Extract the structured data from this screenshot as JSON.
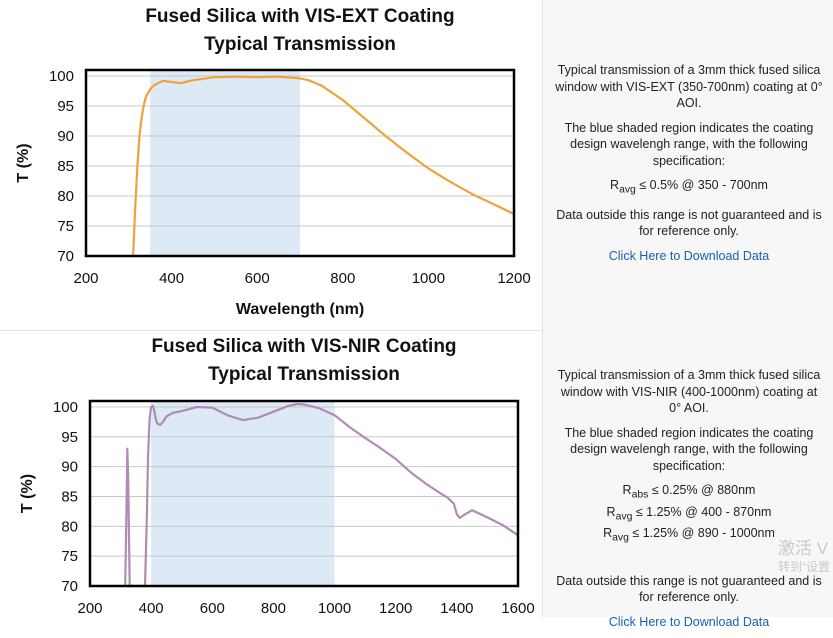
{
  "charts": [
    {
      "chart_data": {
        "type": "line",
        "title": [
          "Fused Silica with VIS-EXT Coating",
          "Typical Transmission"
        ],
        "xlabel": "Wavelength (nm)",
        "ylabel": "T (%)",
        "xlim": [
          200,
          1200
        ],
        "ylim": [
          70,
          101
        ],
        "xticks": [
          200,
          400,
          600,
          800,
          1000,
          1200
        ],
        "yticks": [
          70,
          75,
          80,
          85,
          90,
          95,
          100
        ],
        "shaded_region": [
          350,
          700
        ],
        "series": [
          {
            "color": "#f0a23a",
            "x": [
              310,
              315,
              320,
              325,
              330,
              335,
              340,
              350,
              360,
              380,
              400,
              420,
              450,
              500,
              550,
              600,
              650,
              700,
              720,
              750,
              800,
              850,
              900,
              950,
              1000,
              1050,
              1100,
              1150,
              1200
            ],
            "y": [
              70,
              78,
              85,
              90,
              93,
              95.2,
              96.5,
              97.8,
              98.5,
              99.2,
              99.0,
              98.8,
              99.3,
              99.8,
              99.9,
              99.8,
              99.9,
              99.6,
              99.3,
              98.4,
              96.0,
              93.0,
              90.0,
              87.2,
              84.6,
              82.4,
              80.4,
              78.7,
              77.0
            ]
          }
        ]
      },
      "description": {
        "p1": "Typical transmission of a 3mm thick fused silica window with VIS-EXT (350-700nm) coating at 0° AOI.",
        "p2": "The blue shaded region indicates the coating design wavelengh range, with the following specification:",
        "specs": [
          {
            "sym": "R",
            "sub": "avg",
            "text": " ≤ 0.5% @ 350 - 700nm"
          }
        ],
        "p3": "Data outside this range is not guaranteed and is for reference only.",
        "link": "Click Here to Download Data"
      }
    },
    {
      "chart_data": {
        "type": "line",
        "title": [
          "Fused Silica with VIS-NIR Coating",
          "Typical Transmission"
        ],
        "xlabel": "",
        "ylabel": "T (%)",
        "xlim": [
          200,
          1600
        ],
        "ylim": [
          70,
          101
        ],
        "xticks": [
          200,
          400,
          600,
          800,
          1000,
          1200,
          1400,
          1600
        ],
        "yticks": [
          70,
          75,
          80,
          85,
          90,
          95,
          100
        ],
        "shaded_region": [
          400,
          1000
        ],
        "series": [
          {
            "color": "#b08cb4",
            "x": [
              315,
              320,
              322,
              325,
              330,
              380,
              385,
              390,
              395,
              400,
              405,
              410,
              415,
              420,
              430,
              440,
              450,
              470,
              500,
              550,
              600,
              650,
              700,
              750,
              800,
              850,
              880,
              900,
              950,
              1000,
              1050,
              1100,
              1150,
              1200,
              1250,
              1300,
              1350,
              1370,
              1380,
              1390,
              1400,
              1410,
              1420,
              1450,
              1500,
              1550,
              1600
            ],
            "y": [
              70,
              85,
              93,
              88,
              70,
              70,
              80,
              92,
              98,
              100,
              100.2,
              99.5,
              98,
              97.2,
              97.0,
              97.6,
              98.4,
              99.0,
              99.3,
              100.0,
              99.9,
              98.6,
              97.8,
              98.2,
              99.2,
              100.2,
              100.5,
              100.4,
              99.8,
              98.6,
              96.6,
              94.8,
              93.1,
              91.3,
              89.0,
              87.1,
              85.4,
              84.8,
              84.3,
              83.8,
              82.0,
              81.4,
              81.8,
              82.7,
              81.5,
              80.2,
              78.5
            ]
          }
        ]
      },
      "description": {
        "p1": "Typical transmission of a 3mm thick fused silica window with VIS-NIR (400-1000nm) coating at 0° AOI.",
        "p2": "The blue shaded region indicates the coating design wavelengh range, with the following specification:",
        "specs": [
          {
            "sym": "R",
            "sub": "abs",
            "text": " ≤ 0.25% @ 880nm"
          },
          {
            "sym": "R",
            "sub": "avg",
            "text": " ≤ 1.25% @ 400 - 870nm"
          },
          {
            "sym": "R",
            "sub": "avg",
            "text": " ≤ 1.25% @ 890 - 1000nm"
          }
        ],
        "p3": "Data outside this range is not guaranteed and is for reference only.",
        "link": "Click Here to Download Data"
      }
    }
  ],
  "colors": {
    "shade": "#dde9f5",
    "grid": "#c8c8c8",
    "frame": "#000000",
    "link": "#1a5fb4"
  },
  "watermark": {
    "line1": "激活 V",
    "line2": "转到“设置"
  }
}
